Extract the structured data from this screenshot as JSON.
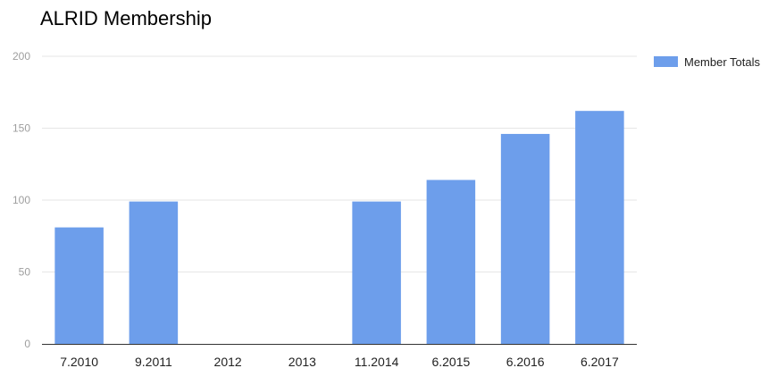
{
  "chart_data": {
    "type": "bar",
    "title": "ALRID Membership",
    "categories": [
      "7.2010",
      "9.2011",
      "2012",
      "2013",
      "11.2014",
      "6.2015",
      "6.2016",
      "6.2017"
    ],
    "series": [
      {
        "name": "Member Totals",
        "values": [
          81,
          99,
          null,
          null,
          99,
          114,
          146,
          162
        ],
        "color": "#6d9eeb"
      }
    ],
    "ylim": [
      0,
      200
    ],
    "yticks": [
      0,
      50,
      100,
      150,
      200
    ],
    "grid": true,
    "legend_position": "right"
  }
}
